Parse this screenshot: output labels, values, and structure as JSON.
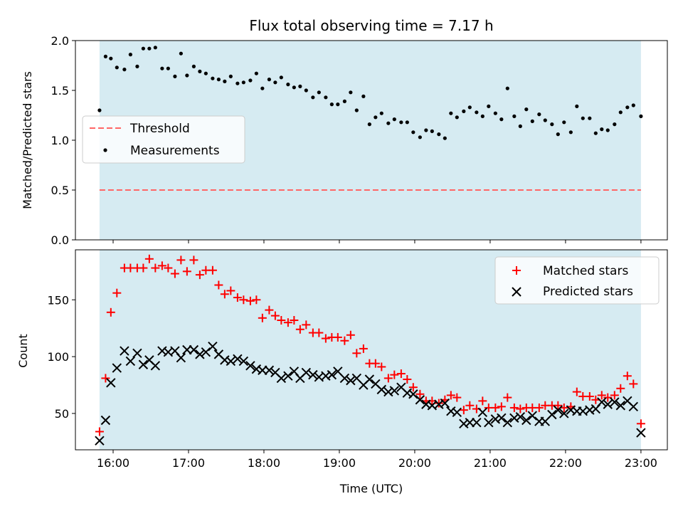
{
  "chart_data": [
    {
      "type": "scatter",
      "title": "Flux total observing time = 7.17 h",
      "xlabel": "",
      "ylabel": "Matched/Predicted stars",
      "xlim": [
        15.5,
        23.35
      ],
      "ylim": [
        0.0,
        2.0
      ],
      "yticks": [
        "0.0",
        "0.5",
        "1.0",
        "1.5",
        "2.0"
      ],
      "shaded_span": [
        15.82,
        23.0
      ],
      "shade_color": "#add8e6",
      "legend_position": "center-left",
      "threshold": {
        "name": "Threshold",
        "y": 0.5,
        "x_range": [
          15.82,
          23.0
        ],
        "color": "#ff6666"
      },
      "series": [
        {
          "name": "Measurements",
          "marker": "dot",
          "color": "#000000",
          "x": [
            15.82,
            15.9,
            15.97,
            16.05,
            16.15,
            16.23,
            16.32,
            16.4,
            16.48,
            16.56,
            16.65,
            16.73,
            16.82,
            16.9,
            16.98,
            17.07,
            17.15,
            17.23,
            17.32,
            17.4,
            17.48,
            17.56,
            17.65,
            17.73,
            17.82,
            17.9,
            17.98,
            18.07,
            18.15,
            18.23,
            18.32,
            18.4,
            18.48,
            18.56,
            18.65,
            18.73,
            18.82,
            18.9,
            18.98,
            19.07,
            19.15,
            19.23,
            19.32,
            19.4,
            19.48,
            19.56,
            19.65,
            19.73,
            19.82,
            19.9,
            19.98,
            20.07,
            20.15,
            20.23,
            20.32,
            20.4,
            20.48,
            20.56,
            20.65,
            20.73,
            20.82,
            20.9,
            20.98,
            21.07,
            21.15,
            21.23,
            21.32,
            21.4,
            21.48,
            21.56,
            21.65,
            21.73,
            21.82,
            21.9,
            21.98,
            22.07,
            22.15,
            22.23,
            22.32,
            22.4,
            22.48,
            22.56,
            22.65,
            22.73,
            22.82,
            22.9,
            23.0
          ],
          "y": [
            1.3,
            1.84,
            1.82,
            1.73,
            1.71,
            1.86,
            1.74,
            1.92,
            1.92,
            1.93,
            1.72,
            1.72,
            1.64,
            1.87,
            1.65,
            1.74,
            1.69,
            1.67,
            1.62,
            1.61,
            1.59,
            1.64,
            1.57,
            1.58,
            1.6,
            1.67,
            1.52,
            1.61,
            1.58,
            1.63,
            1.56,
            1.53,
            1.54,
            1.5,
            1.43,
            1.48,
            1.43,
            1.36,
            1.36,
            1.39,
            1.48,
            1.3,
            1.44,
            1.16,
            1.23,
            1.27,
            1.17,
            1.21,
            1.18,
            1.18,
            1.08,
            1.03,
            1.1,
            1.09,
            1.06,
            1.02,
            1.27,
            1.23,
            1.29,
            1.33,
            1.28,
            1.24,
            1.34,
            1.27,
            1.21,
            1.52,
            1.24,
            1.14,
            1.31,
            1.19,
            1.26,
            1.2,
            1.16,
            1.06,
            1.18,
            1.08,
            1.34,
            1.22,
            1.22,
            1.07,
            1.11,
            1.1,
            1.16,
            1.28,
            1.33,
            1.35,
            1.24
          ]
        }
      ]
    },
    {
      "type": "scatter",
      "title": "",
      "xlabel": "Time (UTC)",
      "ylabel": "Count",
      "xlim": [
        15.5,
        23.35
      ],
      "ylim": [
        18,
        194
      ],
      "yticks": [
        "50",
        "100",
        "150"
      ],
      "xticks": [
        "16:00",
        "17:00",
        "18:00",
        "19:00",
        "20:00",
        "21:00",
        "22:00",
        "23:00"
      ],
      "shaded_span": [
        15.82,
        23.0
      ],
      "shade_color": "#add8e6",
      "legend_position": "top-right",
      "series": [
        {
          "name": "Matched stars",
          "marker": "plus",
          "color": "#ff0000",
          "x": [
            15.82,
            15.9,
            15.97,
            16.05,
            16.15,
            16.23,
            16.32,
            16.4,
            16.48,
            16.56,
            16.65,
            16.73,
            16.82,
            16.9,
            16.98,
            17.07,
            17.15,
            17.23,
            17.32,
            17.4,
            17.48,
            17.56,
            17.65,
            17.73,
            17.82,
            17.9,
            17.98,
            18.07,
            18.15,
            18.23,
            18.32,
            18.4,
            18.48,
            18.56,
            18.65,
            18.73,
            18.82,
            18.9,
            18.98,
            19.07,
            19.15,
            19.23,
            19.32,
            19.4,
            19.48,
            19.56,
            19.65,
            19.73,
            19.82,
            19.9,
            19.98,
            20.07,
            20.15,
            20.23,
            20.32,
            20.4,
            20.48,
            20.56,
            20.65,
            20.73,
            20.82,
            20.9,
            20.98,
            21.07,
            21.15,
            21.23,
            21.32,
            21.4,
            21.48,
            21.56,
            21.65,
            21.73,
            21.82,
            21.9,
            21.98,
            22.07,
            22.15,
            22.23,
            22.32,
            22.4,
            22.48,
            22.56,
            22.65,
            22.73,
            22.82,
            22.9,
            23.0
          ],
          "y": [
            34,
            81,
            139,
            156,
            178,
            178,
            178,
            178,
            186,
            178,
            180,
            178,
            173,
            185,
            175,
            185,
            172,
            176,
            176,
            163,
            155,
            158,
            152,
            150,
            149,
            150,
            134,
            141,
            136,
            132,
            130,
            132,
            124,
            128,
            121,
            121,
            116,
            117,
            117,
            114,
            119,
            103,
            107,
            94,
            94,
            91,
            81,
            84,
            85,
            80,
            73,
            67,
            61,
            61,
            59,
            62,
            66,
            64,
            53,
            57,
            54,
            61,
            55,
            55,
            56,
            64,
            55,
            54,
            55,
            55,
            55,
            57,
            57,
            57,
            55,
            56,
            69,
            65,
            65,
            62,
            66,
            64,
            66,
            72,
            83,
            76,
            41
          ]
        },
        {
          "name": "Predicted stars",
          "marker": "x",
          "color": "#000000",
          "x": [
            15.82,
            15.9,
            15.97,
            16.05,
            16.15,
            16.23,
            16.32,
            16.4,
            16.48,
            16.56,
            16.65,
            16.73,
            16.82,
            16.9,
            16.98,
            17.07,
            17.15,
            17.23,
            17.32,
            17.4,
            17.48,
            17.56,
            17.65,
            17.73,
            17.82,
            17.9,
            17.98,
            18.07,
            18.15,
            18.23,
            18.32,
            18.4,
            18.48,
            18.56,
            18.65,
            18.73,
            18.82,
            18.9,
            18.98,
            19.07,
            19.15,
            19.23,
            19.32,
            19.4,
            19.48,
            19.56,
            19.65,
            19.73,
            19.82,
            19.9,
            19.98,
            20.07,
            20.15,
            20.23,
            20.32,
            20.4,
            20.48,
            20.56,
            20.65,
            20.73,
            20.82,
            20.9,
            20.98,
            21.07,
            21.15,
            21.23,
            21.32,
            21.4,
            21.48,
            21.56,
            21.65,
            21.73,
            21.82,
            21.9,
            21.98,
            22.07,
            22.15,
            22.23,
            22.32,
            22.4,
            22.48,
            22.56,
            22.65,
            22.73,
            22.82,
            22.9,
            23.0
          ],
          "y": [
            26,
            44,
            77,
            90,
            105,
            96,
            103,
            93,
            97,
            92,
            105,
            104,
            105,
            99,
            106,
            106,
            102,
            104,
            109,
            102,
            97,
            96,
            98,
            96,
            92,
            89,
            88,
            88,
            86,
            81,
            83,
            87,
            81,
            86,
            84,
            82,
            83,
            84,
            87,
            81,
            79,
            81,
            75,
            80,
            76,
            71,
            69,
            70,
            73,
            68,
            67,
            62,
            58,
            57,
            58,
            59,
            52,
            51,
            41,
            42,
            42,
            51,
            42,
            45,
            46,
            42,
            46,
            47,
            44,
            48,
            43,
            43,
            49,
            53,
            50,
            53,
            52,
            52,
            53,
            54,
            60,
            58,
            60,
            57,
            61,
            56,
            33
          ]
        }
      ]
    }
  ]
}
